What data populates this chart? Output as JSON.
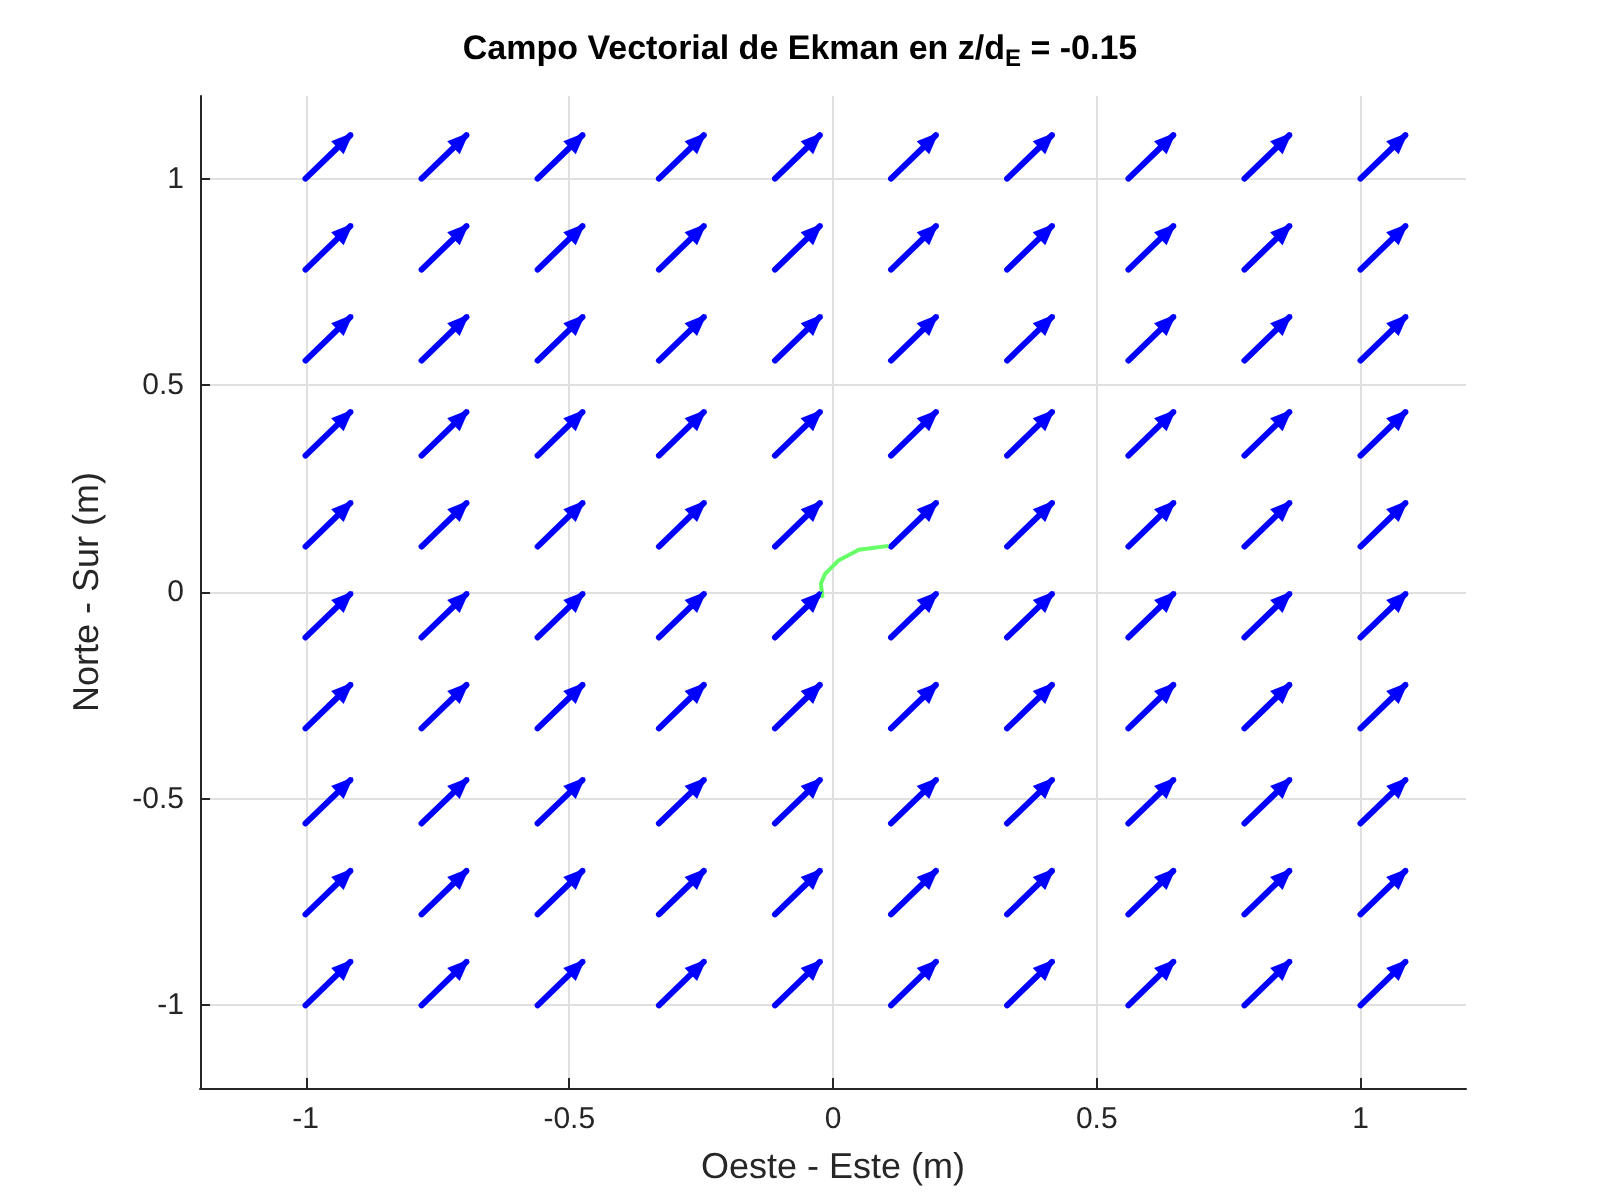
{
  "chart_data": {
    "type": "line",
    "title": "Campo Vectorial de Ekman en z/d$_{E}$ = -0.15",
    "xlabel": "Oeste - Este (m)",
    "ylabel": "Norte - Sur (m)",
    "xlim": [
      -1.2,
      1.2
    ],
    "ylim": [
      -1.2,
      1.2
    ],
    "xticks": [
      -1,
      -0.5,
      0,
      0.5,
      1
    ],
    "yticks": [
      -1,
      -0.5,
      0,
      0.5,
      1
    ],
    "grid": true,
    "series": [
      {
        "color": "#0000ff",
        "x": [
          -1,
          -0.915,
          null,
          -0.78,
          -0.695,
          null,
          -0.56,
          -0.475,
          null,
          -0.33,
          -0.245,
          null,
          -0.11,
          -0.025,
          null,
          0.11,
          0.195,
          null,
          0.33,
          0.415,
          null,
          0.56,
          0.645,
          null,
          0.78,
          0.865,
          null,
          1,
          1.085,
          null
        ],
        "values": [
          1,
          1.105,
          null,
          1,
          1.105,
          null,
          1,
          1.105,
          null,
          1,
          1.105,
          null,
          1,
          1.105,
          null,
          1,
          1.105,
          null,
          1,
          1.105,
          null,
          1,
          1.105,
          null,
          1,
          1.105,
          null,
          1,
          1.105,
          null
        ]
      },
      {
        "color": "#0000ff",
        "x": [
          -1,
          -0.915,
          null,
          -0.78,
          -0.695,
          null,
          -0.56,
          -0.475,
          null,
          -0.33,
          -0.245,
          null,
          -0.11,
          -0.025,
          null,
          0.11,
          0.195,
          null,
          0.33,
          0.415,
          null,
          0.56,
          0.645,
          null,
          0.78,
          0.865,
          null,
          1,
          1.085,
          null
        ],
        "values": [
          0.78,
          0.885,
          null,
          0.78,
          0.885,
          null,
          0.78,
          0.885,
          null,
          0.78,
          0.885,
          null,
          0.78,
          0.885,
          null,
          0.78,
          0.885,
          null,
          0.78,
          0.885,
          null,
          0.78,
          0.885,
          null,
          0.78,
          0.885,
          null,
          0.78,
          0.885,
          null
        ]
      },
      {
        "color": "#0000ff",
        "x": [
          -1,
          -0.915,
          null,
          -0.78,
          -0.695,
          null,
          -0.56,
          -0.475,
          null,
          -0.33,
          -0.245,
          null,
          -0.11,
          -0.025,
          null,
          0.11,
          0.195,
          null,
          0.33,
          0.415,
          null,
          0.56,
          0.645,
          null,
          0.78,
          0.865,
          null,
          1,
          1.085,
          null
        ],
        "values": [
          0.56,
          0.665,
          null,
          0.56,
          0.665,
          null,
          0.56,
          0.665,
          null,
          0.56,
          0.665,
          null,
          0.56,
          0.665,
          null,
          0.56,
          0.665,
          null,
          0.56,
          0.665,
          null,
          0.56,
          0.665,
          null,
          0.56,
          0.665,
          null,
          0.56,
          0.665,
          null
        ]
      },
      {
        "color": "#0000ff",
        "x": [
          -1,
          -0.915,
          null,
          -0.78,
          -0.695,
          null,
          -0.56,
          -0.475,
          null,
          -0.33,
          -0.245,
          null,
          -0.11,
          -0.025,
          null,
          0.11,
          0.195,
          null,
          0.33,
          0.415,
          null,
          0.56,
          0.645,
          null,
          0.78,
          0.865,
          null,
          1,
          1.085,
          null
        ],
        "values": [
          0.33,
          0.435,
          null,
          0.33,
          0.435,
          null,
          0.33,
          0.435,
          null,
          0.33,
          0.435,
          null,
          0.33,
          0.435,
          null,
          0.33,
          0.435,
          null,
          0.33,
          0.435,
          null,
          0.33,
          0.435,
          null,
          0.33,
          0.435,
          null,
          0.33,
          0.435,
          null
        ]
      },
      {
        "color": "#0000ff",
        "x": [
          -1,
          -0.915,
          null,
          -0.78,
          -0.695,
          null,
          -0.56,
          -0.475,
          null,
          -0.33,
          -0.245,
          null,
          -0.11,
          -0.025,
          null,
          0.11,
          0.195,
          null,
          0.33,
          0.415,
          null,
          0.56,
          0.645,
          null,
          0.78,
          0.865,
          null,
          1,
          1.085,
          null
        ],
        "values": [
          0.11,
          0.215,
          null,
          0.11,
          0.215,
          null,
          0.11,
          0.215,
          null,
          0.11,
          0.215,
          null,
          0.11,
          0.215,
          null,
          0.11,
          0.215,
          null,
          0.11,
          0.215,
          null,
          0.11,
          0.215,
          null,
          0.11,
          0.215,
          null,
          0.11,
          0.215,
          null
        ]
      },
      {
        "color": "#0000ff",
        "x": [
          -1,
          -0.915,
          null,
          -0.78,
          -0.695,
          null,
          -0.56,
          -0.475,
          null,
          -0.33,
          -0.245,
          null,
          -0.11,
          -0.025,
          null,
          0.11,
          0.195,
          null,
          0.33,
          0.415,
          null,
          0.56,
          0.645,
          null,
          0.78,
          0.865,
          null,
          1,
          1.085,
          null
        ],
        "values": [
          -0.11,
          -0.005,
          null,
          -0.11,
          -0.005,
          null,
          -0.11,
          -0.005,
          null,
          -0.11,
          -0.005,
          null,
          -0.11,
          -0.005,
          null,
          -0.11,
          -0.005,
          null,
          -0.11,
          -0.005,
          null,
          -0.11,
          -0.005,
          null,
          -0.11,
          -0.005,
          null,
          -0.11,
          -0.005,
          null
        ]
      },
      {
        "color": "#0000ff",
        "x": [
          -1,
          -0.915,
          null,
          -0.78,
          -0.695,
          null,
          -0.56,
          -0.475,
          null,
          -0.33,
          -0.245,
          null,
          -0.11,
          -0.025,
          null,
          0.11,
          0.195,
          null,
          0.33,
          0.415,
          null,
          0.56,
          0.645,
          null,
          0.78,
          0.865,
          null,
          1,
          1.085,
          null
        ],
        "values": [
          -0.33,
          -0.225,
          null,
          -0.33,
          -0.225,
          null,
          -0.33,
          -0.225,
          null,
          -0.33,
          -0.225,
          null,
          -0.33,
          -0.225,
          null,
          -0.33,
          -0.225,
          null,
          -0.33,
          -0.225,
          null,
          -0.33,
          -0.225,
          null,
          -0.33,
          -0.225,
          null,
          -0.33,
          -0.225,
          null
        ]
      },
      {
        "color": "#0000ff",
        "x": [
          -1,
          -0.915,
          null,
          -0.78,
          -0.695,
          null,
          -0.56,
          -0.475,
          null,
          -0.33,
          -0.245,
          null,
          -0.11,
          -0.025,
          null,
          0.11,
          0.195,
          null,
          0.33,
          0.415,
          null,
          0.56,
          0.645,
          null,
          0.78,
          0.865,
          null,
          1,
          1.085,
          null
        ],
        "values": [
          -0.56,
          -0.455,
          null,
          -0.56,
          -0.455,
          null,
          -0.56,
          -0.455,
          null,
          -0.56,
          -0.455,
          null,
          -0.56,
          -0.455,
          null,
          -0.56,
          -0.455,
          null,
          -0.56,
          -0.455,
          null,
          -0.56,
          -0.455,
          null,
          -0.56,
          -0.455,
          null,
          -0.56,
          -0.455,
          null
        ]
      },
      {
        "color": "#0000ff",
        "x": [
          -1,
          -0.915,
          null,
          -0.78,
          -0.695,
          null,
          -0.56,
          -0.475,
          null,
          -0.33,
          -0.245,
          null,
          -0.11,
          -0.025,
          null,
          0.11,
          0.195,
          null,
          0.33,
          0.415,
          null,
          0.56,
          0.645,
          null,
          0.78,
          0.865,
          null,
          1,
          1.085,
          null
        ],
        "values": [
          -0.78,
          -0.675,
          null,
          -0.78,
          -0.675,
          null,
          -0.78,
          -0.675,
          null,
          -0.78,
          -0.675,
          null,
          -0.78,
          -0.675,
          null,
          -0.78,
          -0.675,
          null,
          -0.78,
          -0.675,
          null,
          -0.78,
          -0.675,
          null,
          -0.78,
          -0.675,
          null,
          -0.78,
          -0.675,
          null
        ]
      },
      {
        "color": "#0000ff",
        "x": [
          -1,
          -0.915,
          null,
          -0.78,
          -0.695,
          null,
          -0.56,
          -0.475,
          null,
          -0.33,
          -0.245,
          null,
          -0.11,
          -0.025,
          null,
          0.11,
          0.195,
          null,
          0.33,
          0.415,
          null,
          0.56,
          0.645,
          null,
          0.78,
          0.865,
          null,
          1,
          1.085,
          null
        ],
        "values": [
          -1,
          -0.895,
          null,
          -1,
          -0.895,
          null,
          -1,
          -0.895,
          null,
          -1,
          -0.895,
          null,
          -1,
          -0.895,
          null,
          -1,
          -0.895,
          null,
          -1,
          -0.895,
          null,
          -1,
          -0.895,
          null,
          -1,
          -0.895,
          null,
          -1,
          -0.895,
          null
        ]
      },
      {
        "color": "#66ff66",
        "x": [
          -0.02,
          -0.023,
          -0.015,
          0.011,
          0.049,
          0.102
        ],
        "values": [
          -0.01,
          0.02,
          0.044,
          0.077,
          0.102,
          0.111
        ]
      }
    ]
  }
}
